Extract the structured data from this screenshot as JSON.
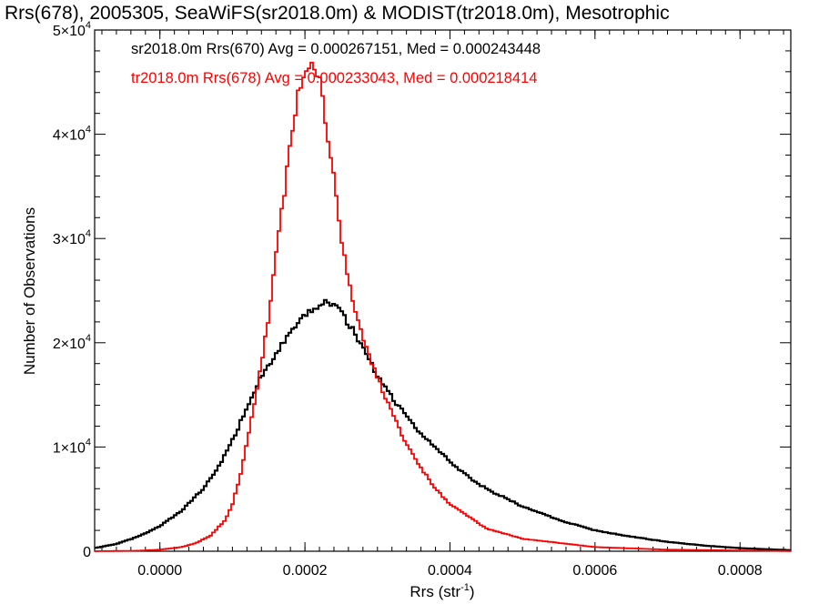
{
  "chart_data": {
    "type": "line",
    "title": "Rrs(678), 2005305, SeaWiFS(sr2018.0m) & MODIST(tr2018.0m), Mesotrophic",
    "xlabel_base": "Rrs (str",
    "xlabel_sup": "-1",
    "xlabel_close": ")",
    "ylabel": "Number of Observations",
    "xlim": [
      -9e-05,
      0.00087
    ],
    "ylim": [
      0,
      50000
    ],
    "grid": false,
    "x_ticks": [
      {
        "value": 0.0,
        "label": "0.0000"
      },
      {
        "value": 0.0002,
        "label": "0.0002"
      },
      {
        "value": 0.0004,
        "label": "0.0004"
      },
      {
        "value": 0.0006,
        "label": "0.0006"
      },
      {
        "value": 0.0008,
        "label": "0.0008"
      }
    ],
    "y_ticks": [
      {
        "value": 0,
        "base": "0",
        "exp": ""
      },
      {
        "value": 10000,
        "base": "1×10",
        "exp": "4"
      },
      {
        "value": 20000,
        "base": "2×10",
        "exp": "4"
      },
      {
        "value": 30000,
        "base": "3×10",
        "exp": "4"
      },
      {
        "value": 40000,
        "base": "4×10",
        "exp": "4"
      },
      {
        "value": 50000,
        "base": "5×10",
        "exp": "4"
      }
    ],
    "annotations": [
      {
        "text": "sr2018.0m Rrs(670) Avg = 0.000267151, Med = 0.000243448",
        "color": "#000000"
      },
      {
        "text": "tr2018.0m Rrs(678) Avg = 0.000233043, Med = 0.000218414",
        "color": "#ff0000"
      }
    ],
    "series": [
      {
        "color": "#000000",
        "x": [
          -9e-05,
          -6e-05,
          -3e-05,
          0.0,
          3e-05,
          6e-05,
          8e-05,
          0.0001,
          0.00012,
          0.00014,
          0.00016,
          0.00018,
          0.0002,
          0.00022,
          0.00023,
          0.00024,
          0.00026,
          0.00028,
          0.0003,
          0.00032,
          0.00034,
          0.00036,
          0.00038,
          0.0004,
          0.00042,
          0.00045,
          0.0005,
          0.00055,
          0.0006,
          0.00065,
          0.0007,
          0.00075,
          0.0008,
          0.00087
        ],
        "y": [
          300,
          700,
          1400,
          2400,
          3900,
          6000,
          8000,
          10600,
          13800,
          16800,
          19000,
          20800,
          22600,
          23600,
          24000,
          23700,
          21900,
          19500,
          16800,
          14800,
          12900,
          11300,
          9900,
          8600,
          7400,
          6000,
          4300,
          3000,
          2000,
          1400,
          900,
          550,
          300,
          100
        ]
      },
      {
        "color": "#ff0000",
        "x": [
          -9e-05,
          -3e-05,
          0.0,
          3e-05,
          5e-05,
          7e-05,
          9e-05,
          0.0001,
          0.00011,
          0.00012,
          0.00013,
          0.00014,
          0.00015,
          0.00016,
          0.00017,
          0.00018,
          0.00019,
          0.0002,
          0.00021,
          0.00022,
          0.00023,
          0.00024,
          0.00025,
          0.00026,
          0.00027,
          0.00028,
          0.00029,
          0.0003,
          0.00032,
          0.00034,
          0.00036,
          0.00038,
          0.0004,
          0.00045,
          0.0005,
          0.0006,
          0.0007,
          0.00087
        ],
        "y": [
          0,
          50,
          150,
          400,
          800,
          1500,
          3000,
          4500,
          7000,
          10500,
          14000,
          18000,
          22500,
          28500,
          33500,
          39000,
          43500,
          46500,
          47200,
          45500,
          40500,
          35500,
          30000,
          26000,
          23000,
          20400,
          18400,
          16700,
          13200,
          10300,
          8000,
          6000,
          4500,
          2200,
          1200,
          400,
          150,
          20
        ]
      }
    ]
  }
}
